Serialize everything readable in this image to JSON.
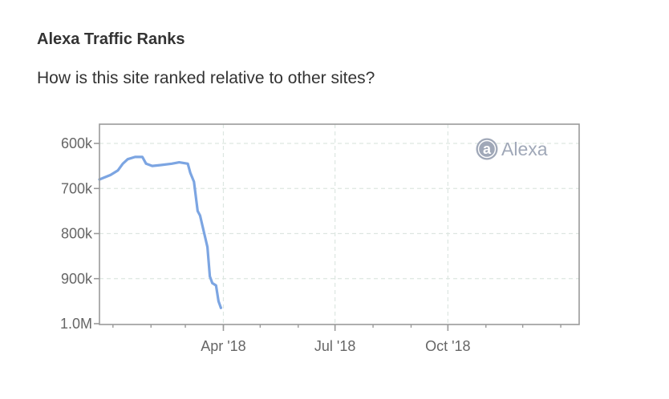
{
  "section": {
    "title": "Alexa Traffic Ranks",
    "subtitle": "How is this site ranked relative to other sites?"
  },
  "logo": {
    "icon": "alexa-logo-icon",
    "glyph": "a",
    "text": "Alexa"
  },
  "colors": {
    "line": "#7ca5e2",
    "frame": "#9a9a9a",
    "grid": "#dde6e1",
    "logo": "#a0a8b8"
  },
  "chart_data": {
    "type": "line",
    "title": "",
    "xlabel": "",
    "ylabel": "",
    "y_axis_inverted": true,
    "grid": true,
    "y_ticks": [
      {
        "value": 600000,
        "label": "600k"
      },
      {
        "value": 700000,
        "label": "700k"
      },
      {
        "value": 800000,
        "label": "800k"
      },
      {
        "value": 900000,
        "label": "900k"
      },
      {
        "value": 1000000,
        "label": "1.0M"
      }
    ],
    "x_ticks": [
      {
        "value": "2018-04-01",
        "label": "Apr '18"
      },
      {
        "value": "2018-07-01",
        "label": "Jul '18"
      },
      {
        "value": "2018-10-01",
        "label": "Oct '18"
      }
    ],
    "xlim": [
      "2017-12-21",
      "2019-01-16"
    ],
    "series": [
      {
        "points": [
          {
            "x": "2017-12-21",
            "y": 680000
          },
          {
            "x": "2017-12-30",
            "y": 670000
          },
          {
            "x": "2018-01-05",
            "y": 660000
          },
          {
            "x": "2018-01-09",
            "y": 645000
          },
          {
            "x": "2018-01-13",
            "y": 635000
          },
          {
            "x": "2018-01-19",
            "y": 630000
          },
          {
            "x": "2018-01-25",
            "y": 630000
          },
          {
            "x": "2018-01-28",
            "y": 645000
          },
          {
            "x": "2018-02-02",
            "y": 650000
          },
          {
            "x": "2018-02-09",
            "y": 648000
          },
          {
            "x": "2018-02-18",
            "y": 645000
          },
          {
            "x": "2018-02-24",
            "y": 642000
          },
          {
            "x": "2018-03-03",
            "y": 645000
          },
          {
            "x": "2018-03-05",
            "y": 665000
          },
          {
            "x": "2018-03-08",
            "y": 685000
          },
          {
            "x": "2018-03-11",
            "y": 750000
          },
          {
            "x": "2018-03-13",
            "y": 760000
          },
          {
            "x": "2018-03-16",
            "y": 795000
          },
          {
            "x": "2018-03-19",
            "y": 830000
          },
          {
            "x": "2018-03-21",
            "y": 895000
          },
          {
            "x": "2018-03-23",
            "y": 910000
          },
          {
            "x": "2018-03-26",
            "y": 915000
          },
          {
            "x": "2018-03-28",
            "y": 950000
          },
          {
            "x": "2018-03-30",
            "y": 965000
          }
        ]
      }
    ]
  }
}
